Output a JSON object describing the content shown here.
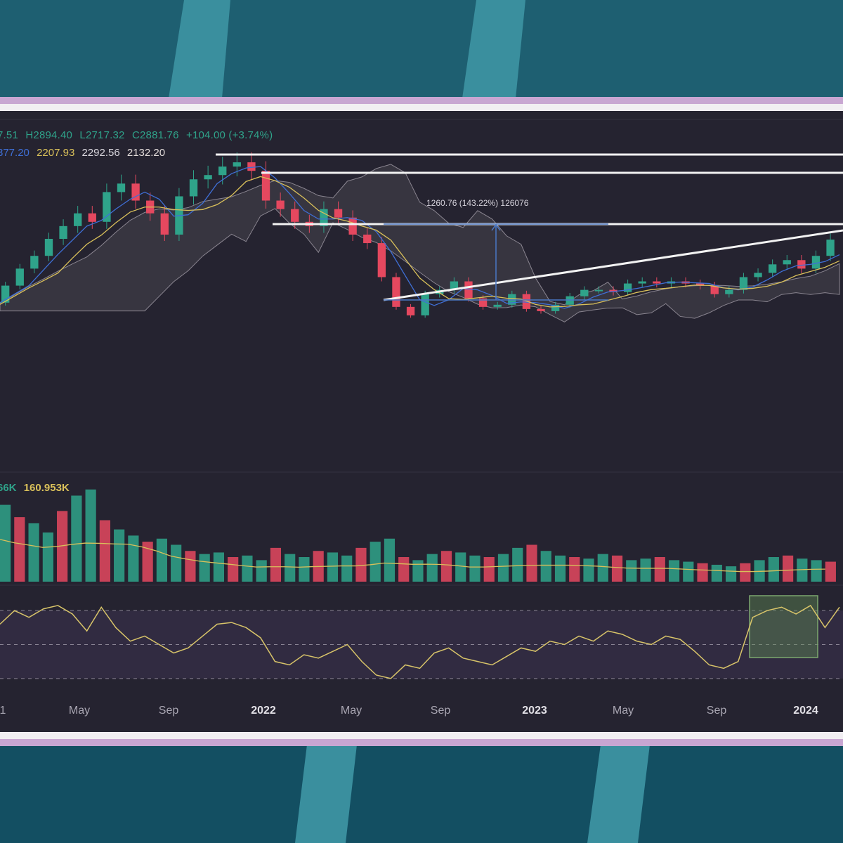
{
  "header": {
    "open": "7.51",
    "high": "H2894.40",
    "low": "L2717.32",
    "close": "C2881.76",
    "change": "+104.00 (+3.74%)"
  },
  "ma_values": [
    "377.20",
    "2207.93",
    "2292.56",
    "2132.20"
  ],
  "volume_header": {
    "volume": "66K",
    "volume_ma": "160.953K"
  },
  "measure_label": "1260.76 (143.22%) 126076",
  "colors": {
    "up": "#2fa38a",
    "down": "#e5485f",
    "ma_blue": "#3f6fd6",
    "ma_yellow": "#d9c05a",
    "rsi_line": "#d8c469",
    "rsi_band": "#3d3350",
    "highlight": "#5f8a55"
  },
  "chart_data": {
    "type": "line",
    "x_ticks": [
      {
        "label": "1",
        "type": "month"
      },
      {
        "label": "May",
        "type": "month"
      },
      {
        "label": "Sep",
        "type": "month"
      },
      {
        "label": "2022",
        "type": "year"
      },
      {
        "label": "May",
        "type": "month"
      },
      {
        "label": "Sep",
        "type": "month"
      },
      {
        "label": "2023",
        "type": "year"
      },
      {
        "label": "May",
        "type": "month"
      },
      {
        "label": "Sep",
        "type": "month"
      },
      {
        "label": "2024",
        "type": "year"
      }
    ],
    "price_series": [
      1400,
      1800,
      2200,
      2500,
      2900,
      3200,
      3500,
      3300,
      4000,
      4200,
      3800,
      3500,
      3000,
      3900,
      4300,
      4400,
      4600,
      4700,
      4500,
      3800,
      3600,
      3300,
      3200,
      3600,
      3400,
      3000,
      2800,
      2000,
      1300,
      1100,
      1600,
      1700,
      1900,
      1500,
      1300,
      1350,
      1600,
      1250,
      1200,
      1350,
      1550,
      1700,
      1700,
      1650,
      1850,
      1900,
      1850,
      1900,
      1850,
      1800,
      1600,
      1700,
      2000,
      2100,
      2300,
      2400,
      2200,
      2500,
      2881.76
    ],
    "rsi_series": [
      62,
      70,
      66,
      71,
      73,
      68,
      58,
      72,
      60,
      52,
      55,
      50,
      45,
      48,
      55,
      62,
      63,
      60,
      54,
      40,
      38,
      44,
      42,
      46,
      50,
      40,
      32,
      30,
      38,
      36,
      45,
      48,
      42,
      40,
      38,
      43,
      48,
      46,
      52,
      50,
      55,
      52,
      58,
      56,
      52,
      50,
      55,
      53,
      46,
      38,
      36,
      40,
      66,
      70,
      72,
      68,
      73,
      60,
      72
    ],
    "volume_series": [
      250,
      210,
      190,
      160,
      230,
      280,
      300,
      200,
      170,
      150,
      130,
      140,
      120,
      100,
      90,
      95,
      80,
      85,
      70,
      110,
      90,
      80,
      100,
      95,
      85,
      110,
      130,
      140,
      80,
      70,
      90,
      100,
      95,
      85,
      80,
      90,
      110,
      120,
      100,
      85,
      80,
      75,
      90,
      85,
      70,
      75,
      80,
      70,
      65,
      60,
      55,
      50,
      60,
      70,
      80,
      85,
      75,
      70,
      65
    ],
    "measurement": {
      "value": 1260.76,
      "percent": 143.22
    }
  }
}
